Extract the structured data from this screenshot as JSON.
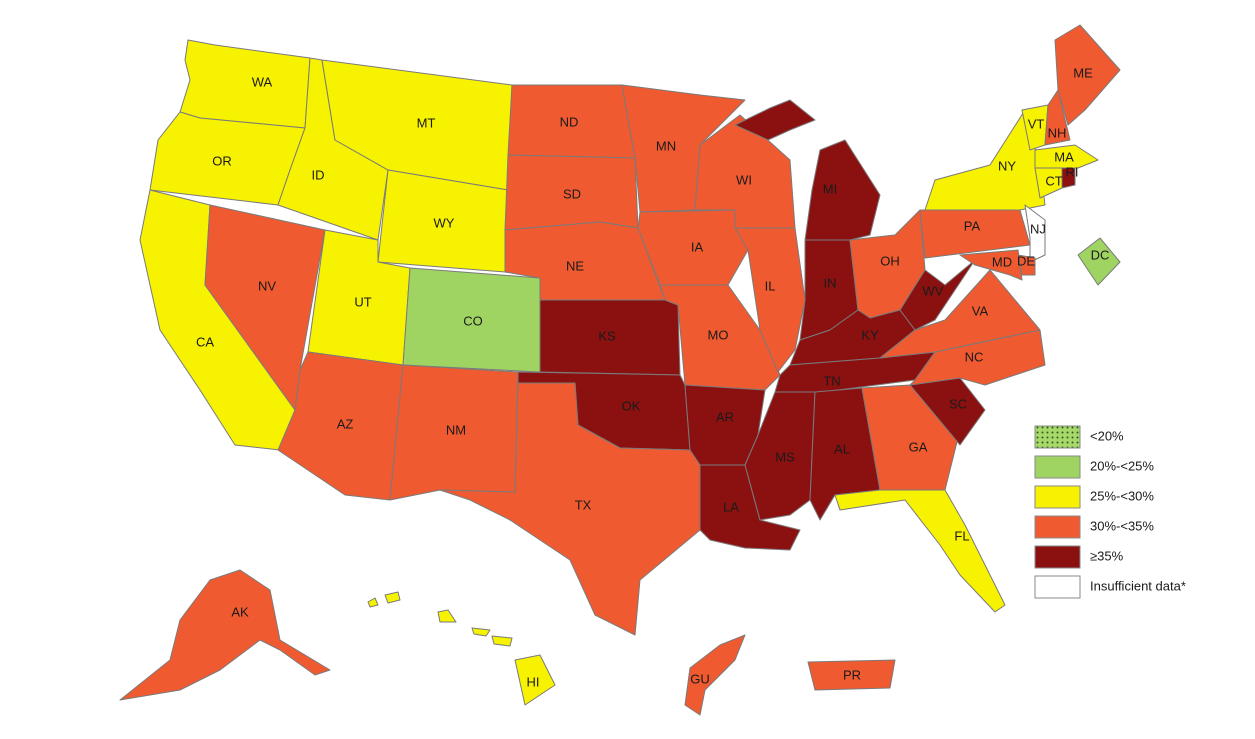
{
  "legend": [
    {
      "label": "<20%",
      "color": "#a6d96a",
      "pattern": "dots"
    },
    {
      "label": "20%-<25%",
      "color": "#9fd462"
    },
    {
      "label": "25%-<30%",
      "color": "#f7f200"
    },
    {
      "label": "30%-<35%",
      "color": "#f05a30"
    },
    {
      "label": "≥35%",
      "color": "#8b1111"
    },
    {
      "label": "Insufficient data*",
      "color": "#ffffff"
    }
  ],
  "states": [
    {
      "label": "WA",
      "color": "#f7f200"
    },
    {
      "label": "OR",
      "color": "#f7f200"
    },
    {
      "label": "CA",
      "color": "#f7f200"
    },
    {
      "label": "NV",
      "color": "#f05a30"
    },
    {
      "label": "ID",
      "color": "#f7f200"
    },
    {
      "label": "MT",
      "color": "#f7f200"
    },
    {
      "label": "WY",
      "color": "#f7f200"
    },
    {
      "label": "UT",
      "color": "#f7f200"
    },
    {
      "label": "CO",
      "color": "#9fd462"
    },
    {
      "label": "AZ",
      "color": "#f05a30"
    },
    {
      "label": "NM",
      "color": "#f05a30"
    },
    {
      "label": "ND",
      "color": "#f05a30"
    },
    {
      "label": "SD",
      "color": "#f05a30"
    },
    {
      "label": "NE",
      "color": "#f05a30"
    },
    {
      "label": "KS",
      "color": "#8b1111"
    },
    {
      "label": "OK",
      "color": "#8b1111"
    },
    {
      "label": "TX",
      "color": "#f05a30"
    },
    {
      "label": "MN",
      "color": "#f05a30"
    },
    {
      "label": "IA",
      "color": "#f05a30"
    },
    {
      "label": "MO",
      "color": "#f05a30"
    },
    {
      "label": "AR",
      "color": "#8b1111"
    },
    {
      "label": "LA",
      "color": "#8b1111"
    },
    {
      "label": "WI",
      "color": "#f05a30"
    },
    {
      "label": "IL",
      "color": "#f05a30"
    },
    {
      "label": "MI",
      "color": "#8b1111"
    },
    {
      "label": "IN",
      "color": "#8b1111"
    },
    {
      "label": "OH",
      "color": "#f05a30"
    },
    {
      "label": "KY",
      "color": "#8b1111"
    },
    {
      "label": "TN",
      "color": "#8b1111"
    },
    {
      "label": "MS",
      "color": "#8b1111"
    },
    {
      "label": "AL",
      "color": "#8b1111"
    },
    {
      "label": "GA",
      "color": "#f05a30"
    },
    {
      "label": "FL",
      "color": "#f7f200"
    },
    {
      "label": "SC",
      "color": "#8b1111"
    },
    {
      "label": "NC",
      "color": "#f05a30"
    },
    {
      "label": "VA",
      "color": "#f05a30"
    },
    {
      "label": "WV",
      "color": "#8b1111"
    },
    {
      "label": "PA",
      "color": "#f05a30"
    },
    {
      "label": "NY",
      "color": "#f7f200"
    },
    {
      "label": "VT",
      "color": "#f7f200"
    },
    {
      "label": "NH",
      "color": "#f05a30"
    },
    {
      "label": "ME",
      "color": "#f05a30"
    },
    {
      "label": "MA",
      "color": "#f7f200"
    },
    {
      "label": "CT",
      "color": "#f7f200"
    },
    {
      "label": "RI",
      "color": "#8b1111"
    },
    {
      "label": "NJ",
      "color": "#ffffff"
    },
    {
      "label": "DE",
      "color": "#f05a30"
    },
    {
      "label": "MD",
      "color": "#f05a30"
    },
    {
      "label": "DC",
      "color": "#9fd462"
    },
    {
      "label": "AK",
      "color": "#f05a30"
    },
    {
      "label": "HI",
      "color": "#f7f200"
    },
    {
      "label": "GU",
      "color": "#f05a30"
    },
    {
      "label": "PR",
      "color": "#f05a30"
    }
  ]
}
